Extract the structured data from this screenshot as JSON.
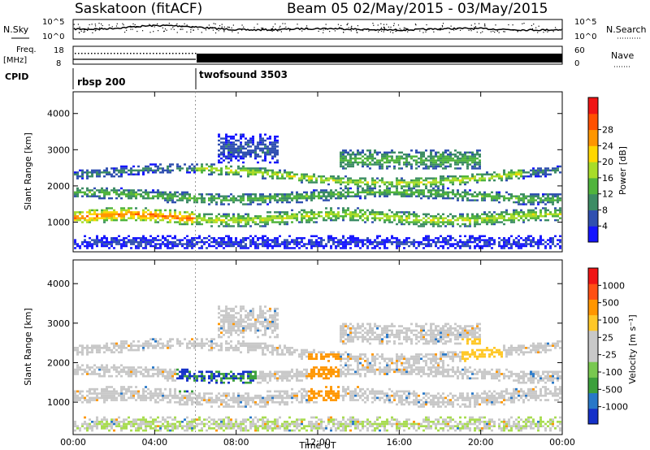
{
  "header": {
    "station": "Saskatoon (fitACF)",
    "beam_info": "Beam 05 02/May/2015 - 03/May/2015"
  },
  "nsky": {
    "label": "N.Sky",
    "right_label": "N.Search",
    "yticks": [
      "10^5",
      "10^0"
    ],
    "right_yticks": [
      "10^5",
      "10^0"
    ]
  },
  "freq": {
    "label_line1": "Freq.",
    "label_line2": "[MHz]",
    "yticks": [
      "18",
      "8"
    ],
    "right_yticks": [
      "60",
      "0"
    ],
    "right_label": "Nave"
  },
  "cpid": {
    "label": "CPID",
    "segments": [
      {
        "name": "rbsp 200",
        "start_hour": 0
      },
      {
        "name": "twofsound 3503",
        "start_hour": 6
      }
    ]
  },
  "chart_data": [
    {
      "type": "heatmap",
      "title": "",
      "ylabel": "Slant Range [km]",
      "xlabel": "",
      "xlim_hours": [
        0,
        24
      ],
      "ylim": [
        180,
        4600
      ],
      "yticks": [
        "1000",
        "2000",
        "3000",
        "4000"
      ],
      "colorbar": {
        "label": "Power [dB]",
        "ticks": [
          "4",
          "8",
          "12",
          "16",
          "20",
          "24",
          "28"
        ],
        "colors": [
          "#1414ff",
          "#3050b0",
          "#3c8c64",
          "#50b43c",
          "#a8dc28",
          "#ffd700",
          "#ff9600",
          "#ff5000",
          "#f01414"
        ]
      }
    },
    {
      "type": "heatmap",
      "title": "",
      "ylabel": "Slant Range [km]",
      "xlabel": "Time UT",
      "xlim_hours": [
        0,
        24
      ],
      "ylim": [
        180,
        4600
      ],
      "yticks": [
        "1000",
        "2000",
        "3000",
        "4000"
      ],
      "xticks": [
        "00:00",
        "04:00",
        "08:00",
        "12:00",
        "16:00",
        "20:00",
        "00:00"
      ],
      "colorbar": {
        "label": "Velocity [m s⁻¹]",
        "ticks": [
          "1000",
          "500",
          "100",
          "25",
          "-25",
          "-100",
          "-500",
          "-1000"
        ],
        "colors": [
          "#1430c8",
          "#2878c8",
          "#3ca03c",
          "#78c850",
          "#c8c8c8",
          "#c8c8c8",
          "#ffc828",
          "#ff9600",
          "#ff5014",
          "#f01414"
        ]
      }
    }
  ]
}
